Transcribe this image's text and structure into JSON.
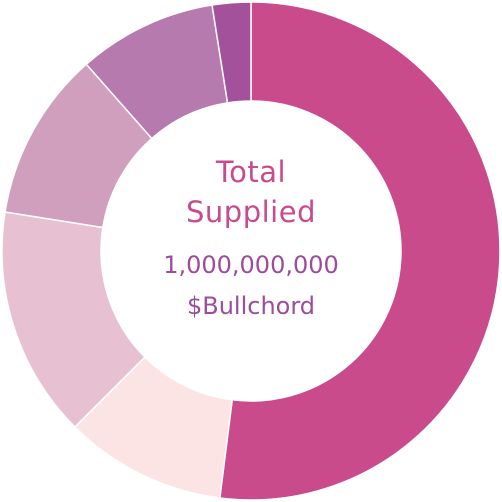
{
  "chart_data": {
    "type": "pie",
    "variant": "donut",
    "center_title_lines": [
      "Total",
      "Supplied"
    ],
    "center_value": "1,000,000,000",
    "center_unit": "$Bullchord",
    "slices": [
      {
        "value": 52.0,
        "color": "#c94b8c"
      },
      {
        "value": 10.5,
        "color": "#fce4e4"
      },
      {
        "value": 15.0,
        "color": "#e7c1d2"
      },
      {
        "value": 11.0,
        "color": "#cf9fbd"
      },
      {
        "value": 9.0,
        "color": "#b67aae"
      },
      {
        "value": 2.5,
        "color": "#a4519c"
      }
    ]
  }
}
